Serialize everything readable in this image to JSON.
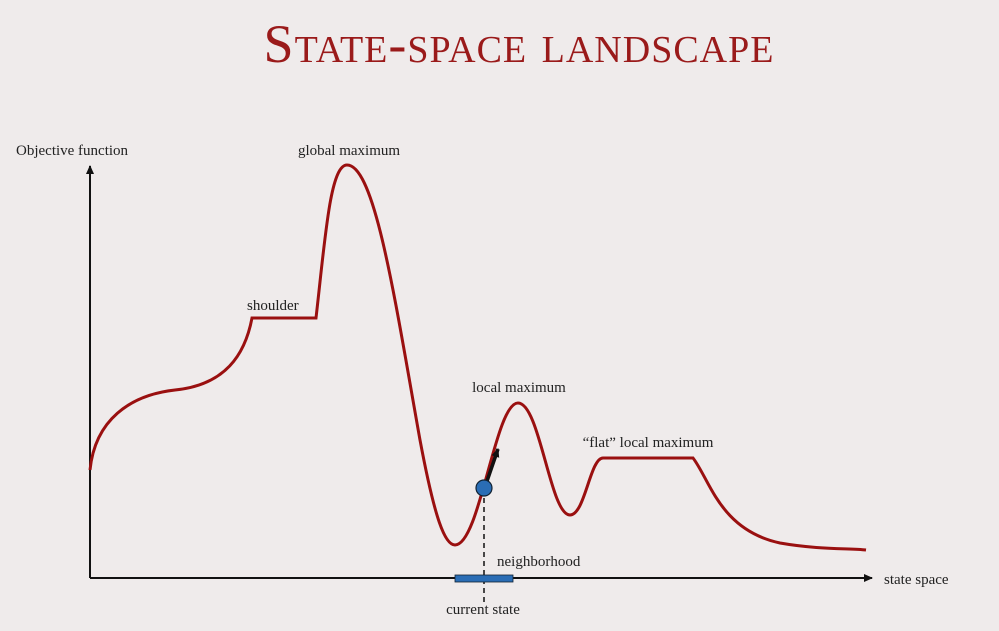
{
  "title": "State-space landscape",
  "axes": {
    "y_label": "Objective function",
    "x_label": "state space"
  },
  "labels": {
    "global_maximum": "global maximum",
    "shoulder": "shoulder",
    "local_maximum": "local maximum",
    "flat_local_maximum": "“flat” local maximum",
    "neighborhood": "neighborhood",
    "current_state": "current state"
  }
}
